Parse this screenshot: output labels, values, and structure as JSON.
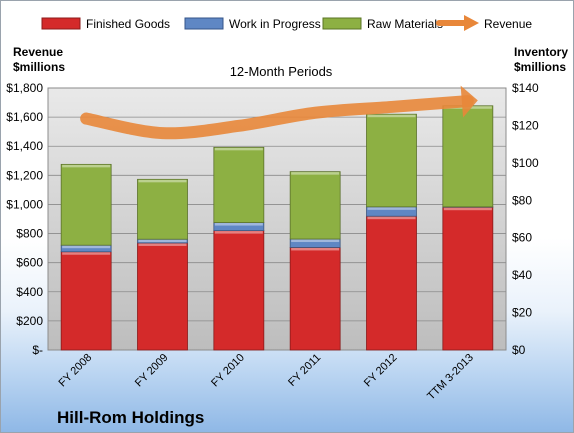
{
  "chart_data": {
    "type": "bar",
    "stacked": true,
    "title": "12-Month Periods",
    "company": "Hill-Rom Holdings",
    "categories": [
      "FY 2008",
      "FY 2009",
      "FY 2010",
      "FY 2011",
      "FY 2012",
      "TTM 3-2013"
    ],
    "ylabel_left": [
      "Revenue",
      "$millions"
    ],
    "ylabel_right": [
      "Inventory",
      "$millions"
    ],
    "yticks_left": [
      "$-",
      "$200",
      "$400",
      "$600",
      "$800",
      "$1,000",
      "$1,200",
      "$1,400",
      "$1,600",
      "$1,800"
    ],
    "yticks_right": [
      "$0",
      "$20",
      "$40",
      "$60",
      "$80",
      "$100",
      "$120",
      "$140"
    ],
    "ylim_left": [
      0,
      1800
    ],
    "ylim_right": [
      0,
      140
    ],
    "grid": "horizontal",
    "legend_position": "top",
    "series": [
      {
        "name": "Finished Goods",
        "type": "bar",
        "axis": "right",
        "color": "#d42a2a",
        "values": [
          52.5,
          57.2,
          63.8,
          54.8,
          71.5,
          76.3
        ]
      },
      {
        "name": "Work in Progress",
        "type": "bar",
        "axis": "right",
        "color": "#5f87c4",
        "values": [
          3.5,
          2.0,
          4.3,
          4.5,
          5.0,
          0.2
        ]
      },
      {
        "name": "Raw Materials",
        "type": "bar",
        "axis": "right",
        "color": "#8db043",
        "values": [
          43.2,
          32.0,
          40.2,
          36.0,
          49.5,
          54.0
        ]
      },
      {
        "name": "Revenue",
        "type": "line",
        "axis": "left",
        "color": "#e8873a",
        "values": [
          1590,
          1490,
          1540,
          1630,
          1670,
          1710
        ]
      }
    ]
  }
}
